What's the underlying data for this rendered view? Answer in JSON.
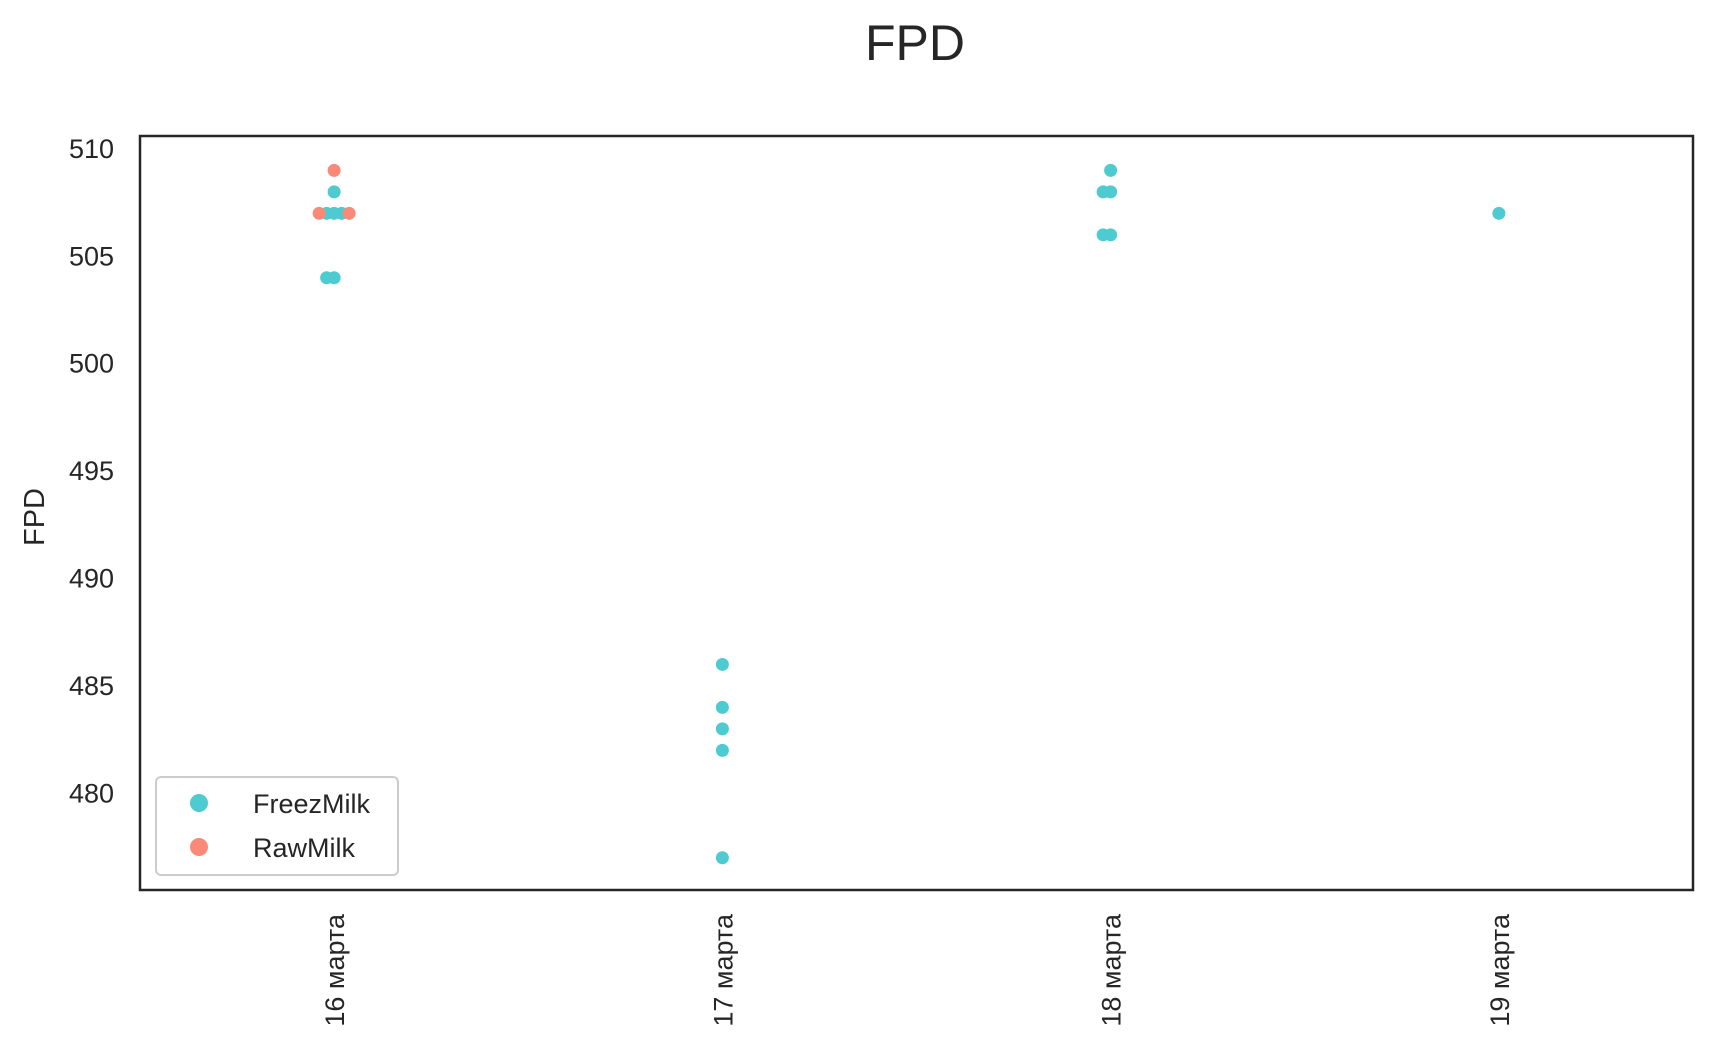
{
  "chart_data": {
    "type": "scatter",
    "title": "FPD",
    "xlabel": "",
    "ylabel": "FPD",
    "categories": [
      "16 марта",
      "17 марта",
      "18 марта",
      "19 марта"
    ],
    "ylim": [
      475.5,
      510.6
    ],
    "yticks": [
      480,
      485,
      490,
      495,
      500,
      505,
      510
    ],
    "grid": false,
    "legend_position": "lower-left",
    "series": [
      {
        "name": "FreezMilk",
        "color": "#4ecbd0",
        "points": [
          {
            "category": "16 марта",
            "y": 507
          },
          {
            "category": "16 марта",
            "y": 507
          },
          {
            "category": "16 марта",
            "y": 508
          },
          {
            "category": "16 марта",
            "y": 507
          },
          {
            "category": "16 марта",
            "y": 504
          },
          {
            "category": "16 марта",
            "y": 504
          },
          {
            "category": "17 марта",
            "y": 486
          },
          {
            "category": "17 марта",
            "y": 484
          },
          {
            "category": "17 марта",
            "y": 483
          },
          {
            "category": "17 марта",
            "y": 482
          },
          {
            "category": "17 марта",
            "y": 477
          },
          {
            "category": "18 марта",
            "y": 509
          },
          {
            "category": "18 марта",
            "y": 508
          },
          {
            "category": "18 марта",
            "y": 508
          },
          {
            "category": "18 марта",
            "y": 506
          },
          {
            "category": "18 марта",
            "y": 506
          },
          {
            "category": "19 марта",
            "y": 507
          }
        ]
      },
      {
        "name": "RawMilk",
        "color": "#fa8a77",
        "points": [
          {
            "category": "16 марта",
            "y": 509
          },
          {
            "category": "16 марта",
            "y": 507
          },
          {
            "category": "16 марта",
            "y": 507
          }
        ]
      }
    ]
  }
}
